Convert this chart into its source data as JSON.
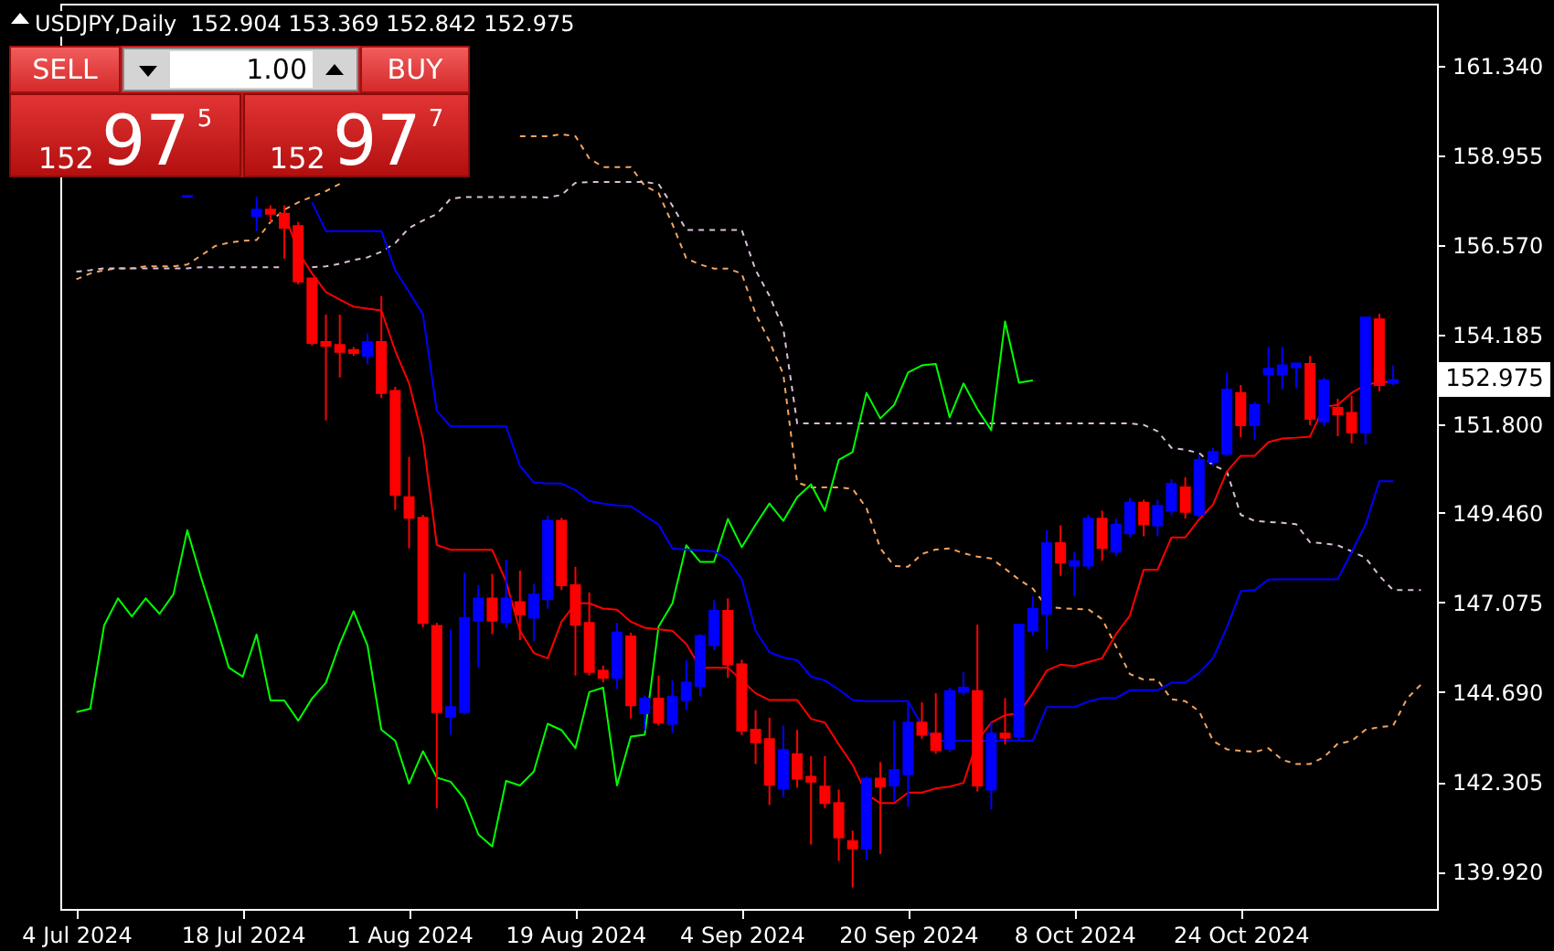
{
  "chart_data": {
    "type": "candlestick",
    "title": "USDJPY,Daily  152.904 153.369 152.842 152.975",
    "categories": [
      "4 Jul 2024",
      null,
      null,
      null,
      null,
      null,
      null,
      null,
      null,
      null,
      null,
      null,
      "18 Jul 2024",
      null,
      null,
      null,
      null,
      null,
      null,
      null,
      null,
      null,
      null,
      null,
      "1 Aug 2024",
      null,
      null,
      null,
      null,
      null,
      null,
      null,
      null,
      null,
      null,
      null,
      "19 Aug 2024",
      null,
      null,
      null,
      null,
      null,
      null,
      null,
      null,
      null,
      null,
      null,
      "4 Sep 2024",
      null,
      null,
      null,
      null,
      null,
      null,
      null,
      null,
      null,
      null,
      null,
      "20 Sep 2024",
      null,
      null,
      null,
      null,
      null,
      null,
      null,
      null,
      null,
      null,
      null,
      "8 Oct 2024",
      null,
      null,
      null,
      null,
      null,
      null,
      null,
      null,
      null,
      null,
      null,
      "24 Oct 2024",
      null,
      null,
      null,
      null,
      null,
      null,
      null,
      null,
      null,
      null,
      null,
      null,
      null
    ],
    "ohlc": [
      null,
      null,
      null,
      null,
      null,
      null,
      null,
      null,
      [
        157.85,
        157.9,
        157.82,
        157.87
      ],
      null,
      null,
      null,
      null,
      [
        157.33,
        157.85,
        156.94,
        157.51
      ],
      [
        157.51,
        157.62,
        157.18,
        157.4
      ],
      [
        157.4,
        157.62,
        156.21,
        157.02
      ],
      [
        157.07,
        157.18,
        155.52,
        155.6
      ],
      [
        155.68,
        155.68,
        153.9,
        153.97
      ],
      [
        153.99,
        154.72,
        151.91,
        153.89
      ],
      [
        153.91,
        154.72,
        153.05,
        153.73
      ],
      [
        153.78,
        153.86,
        153.62,
        153.7
      ],
      [
        153.62,
        154.22,
        153.4,
        153.99
      ],
      [
        153.99,
        155.21,
        152.5,
        152.64
      ],
      [
        152.69,
        152.8,
        149.53,
        149.93
      ],
      [
        149.87,
        150.94,
        148.51,
        149.32
      ],
      [
        149.32,
        149.4,
        146.41,
        146.53
      ],
      [
        146.45,
        146.53,
        141.61,
        144.16
      ],
      [
        144.04,
        146.35,
        143.56,
        144.29
      ],
      [
        144.16,
        147.86,
        144.1,
        146.66
      ],
      [
        146.59,
        147.53,
        145.34,
        147.18
      ],
      [
        147.18,
        147.83,
        146.23,
        146.59
      ],
      [
        146.56,
        148.21,
        146.4,
        147.18
      ],
      [
        147.08,
        147.92,
        146.07,
        146.75
      ],
      [
        146.67,
        147.57,
        146.04,
        147.28
      ],
      [
        147.16,
        149.38,
        146.9,
        149.24
      ],
      [
        149.24,
        149.32,
        147.4,
        147.53
      ],
      [
        147.53,
        148.02,
        145.13,
        146.48
      ],
      [
        146.53,
        147.34,
        145.13,
        145.23
      ],
      [
        145.26,
        145.4,
        144.95,
        145.07
      ],
      [
        145.07,
        146.53,
        144.77,
        146.27
      ],
      [
        146.17,
        146.27,
        143.99,
        144.34
      ],
      [
        144.13,
        144.6,
        143.67,
        144.52
      ],
      [
        144.52,
        145.13,
        143.8,
        143.88
      ],
      [
        143.85,
        145.0,
        143.61,
        144.56
      ],
      [
        144.48,
        145.54,
        144.21,
        144.94
      ],
      [
        144.86,
        146.23,
        144.58,
        146.18
      ],
      [
        145.94,
        147.13,
        145.8,
        146.85
      ],
      [
        146.85,
        147.18,
        145.07,
        145.43
      ],
      [
        145.43,
        145.55,
        143.55,
        143.67
      ],
      [
        143.69,
        144.21,
        142.78,
        143.36
      ],
      [
        143.44,
        144.01,
        141.69,
        142.23
      ],
      [
        142.13,
        143.8,
        141.9,
        143.15
      ],
      [
        143.04,
        143.69,
        142.15,
        142.39
      ],
      [
        142.44,
        142.99,
        140.64,
        142.31
      ],
      [
        142.18,
        142.99,
        141.61,
        141.74
      ],
      [
        141.74,
        142.1,
        140.2,
        140.83
      ],
      [
        140.73,
        141.01,
        139.5,
        140.54
      ],
      [
        140.54,
        142.45,
        140.23,
        142.39
      ],
      [
        142.39,
        142.83,
        140.39,
        142.18
      ],
      [
        142.21,
        143.93,
        141.78,
        142.62
      ],
      [
        142.51,
        144.4,
        141.64,
        143.88
      ],
      [
        143.88,
        144.42,
        143.45,
        143.56
      ],
      [
        143.59,
        144.66,
        143.05,
        143.15
      ],
      [
        143.19,
        144.81,
        143.1,
        144.72
      ],
      [
        144.7,
        145.23,
        144.6,
        144.81
      ],
      [
        144.72,
        146.48,
        142.05,
        142.21
      ],
      [
        142.1,
        143.88,
        141.58,
        143.59
      ],
      [
        143.59,
        144.53,
        143.3,
        143.48
      ],
      [
        143.51,
        146.5,
        143.4,
        146.48
      ],
      [
        146.32,
        147.24,
        146.2,
        146.9
      ],
      [
        146.77,
        148.99,
        145.83,
        148.65
      ],
      [
        148.65,
        149.12,
        147.78,
        148.13
      ],
      [
        148.05,
        148.42,
        147.24,
        148.17
      ],
      [
        148.05,
        149.4,
        147.95,
        149.3
      ],
      [
        149.3,
        149.51,
        148.18,
        148.52
      ],
      [
        148.42,
        149.3,
        148.3,
        149.14
      ],
      [
        148.91,
        149.85,
        148.8,
        149.72
      ],
      [
        149.72,
        149.8,
        148.83,
        149.15
      ],
      [
        149.12,
        149.8,
        148.83,
        149.64
      ],
      [
        149.51,
        150.35,
        149.4,
        150.22
      ],
      [
        150.13,
        150.4,
        149.3,
        149.48
      ],
      [
        149.4,
        151.0,
        149.3,
        150.86
      ],
      [
        150.81,
        151.18,
        150.7,
        151.07
      ],
      [
        151.02,
        153.18,
        150.95,
        152.73
      ],
      [
        152.64,
        152.85,
        151.46,
        151.78
      ],
      [
        151.78,
        152.4,
        151.39,
        152.32
      ],
      [
        153.13,
        153.86,
        152.37,
        153.28
      ],
      [
        153.13,
        153.86,
        152.73,
        153.37
      ],
      [
        153.32,
        153.42,
        152.76,
        153.42
      ],
      [
        153.41,
        153.62,
        151.78,
        151.95
      ],
      [
        151.88,
        153.05,
        151.75,
        152.97
      ],
      [
        152.24,
        152.48,
        151.49,
        152.07
      ],
      [
        152.11,
        152.56,
        151.3,
        151.59
      ],
      [
        151.59,
        154.67,
        151.27,
        154.64
      ],
      [
        154.59,
        154.74,
        152.68,
        152.85
      ],
      [
        152.904,
        153.369,
        152.842,
        152.975
      ],
      null,
      null
    ],
    "colors": [
      null,
      null,
      null,
      null,
      null,
      null,
      null,
      null,
      "#0000ff",
      null,
      null,
      null,
      null,
      "#0000ff",
      "#ff0000",
      "#ff0000",
      "#ff0000",
      "#ff0000",
      "#ff0000",
      "#ff0000",
      "#ff0000",
      "#0000ff",
      "#ff0000",
      "#ff0000",
      "#ff0000",
      "#ff0000",
      "#ff0000",
      "#0000ff",
      "#0000ff",
      "#0000ff",
      "#ff0000",
      "#0000ff",
      "#ff0000",
      "#0000ff",
      "#0000ff",
      "#ff0000",
      "#ff0000",
      "#ff0000",
      "#ff0000",
      "#0000ff",
      "#ff0000",
      "#0000ff",
      "#ff0000",
      "#0000ff",
      "#0000ff",
      "#0000ff",
      "#0000ff",
      "#ff0000",
      "#ff0000",
      "#ff0000",
      "#ff0000",
      "#0000ff",
      "#ff0000",
      "#ff0000",
      "#ff0000",
      "#ff0000",
      "#ff0000",
      "#0000ff",
      "#ff0000",
      "#0000ff",
      "#0000ff",
      "#ff0000",
      "#ff0000",
      "#0000ff",
      "#0000ff",
      "#ff0000",
      "#0000ff",
      "#ff0000",
      "#0000ff",
      "#0000ff",
      "#0000ff",
      "#ff0000",
      "#0000ff",
      "#0000ff",
      "#ff0000",
      "#0000ff",
      "#0000ff",
      "#ff0000",
      "#0000ff",
      "#0000ff",
      "#ff0000",
      "#0000ff",
      "#0000ff",
      "#0000ff",
      "#ff0000",
      "#0000ff",
      "#0000ff",
      "#0000ff",
      "#0000ff",
      "#ff0000",
      "#0000ff",
      "#ff0000",
      "#ff0000",
      "#0000ff",
      "#ff0000",
      "#0000ff",
      null,
      null
    ],
    "series": [
      {
        "type": "line",
        "line_style": "dashed",
        "color": "#f4a460",
        "values": [
          155.66,
          155.81,
          155.9,
          155.95,
          155.95,
          156.0,
          156.0,
          156.0,
          156.05,
          156.29,
          156.54,
          156.63,
          156.68,
          156.7,
          157.18,
          157.51,
          157.7,
          157.85,
          158.0,
          158.19,
          null,
          null,
          null,
          null,
          null,
          null,
          null,
          null,
          null,
          null,
          null,
          null,
          159.46,
          159.46,
          159.46,
          159.51,
          159.46,
          158.87,
          158.64,
          158.64,
          158.64,
          158.14,
          157.95,
          157.12,
          156.21,
          156.05,
          155.94,
          155.94,
          155.81,
          154.74,
          154.01,
          153.13,
          150.26,
          150.13,
          150.13,
          150.13,
          150.09,
          149.58,
          148.51,
          148.04,
          148.02,
          148.36,
          148.48,
          148.51,
          148.38,
          148.29,
          148.24,
          147.97,
          147.68,
          147.44,
          146.96,
          146.92,
          146.9,
          146.89,
          146.63,
          145.91,
          145.17,
          145.02,
          145.02,
          144.5,
          144.45,
          144.18,
          143.4,
          143.17,
          143.13,
          143.1,
          143.2,
          142.89,
          142.78,
          142.78,
          142.96,
          143.32,
          143.39,
          143.69,
          143.76,
          143.8,
          144.52,
          144.89
        ]
      },
      {
        "type": "line",
        "line_style": "dashed",
        "color": "#d8bfd8",
        "values": [
          155.86,
          155.9,
          155.95,
          155.95,
          155.95,
          155.95,
          155.95,
          155.95,
          155.95,
          155.98,
          155.98,
          155.98,
          155.98,
          155.98,
          155.98,
          155.98,
          null,
          155.98,
          156.0,
          156.07,
          156.17,
          156.24,
          156.39,
          156.62,
          157.02,
          157.22,
          157.39,
          157.8,
          157.84,
          157.84,
          157.84,
          157.84,
          157.84,
          157.84,
          157.83,
          157.9,
          158.22,
          158.24,
          158.24,
          158.24,
          158.24,
          158.24,
          158.19,
          157.61,
          156.97,
          156.97,
          156.97,
          156.97,
          156.97,
          155.9,
          155.22,
          154.35,
          151.83,
          151.83,
          151.83,
          151.83,
          151.83,
          151.83,
          151.83,
          151.83,
          151.83,
          151.83,
          151.83,
          151.83,
          151.83,
          151.83,
          151.83,
          151.83,
          151.83,
          151.83,
          151.83,
          151.83,
          151.83,
          151.83,
          151.83,
          151.83,
          151.83,
          151.79,
          151.62,
          151.18,
          151.13,
          151.04,
          150.72,
          150.55,
          149.4,
          149.24,
          149.21,
          149.19,
          149.15,
          148.67,
          148.64,
          148.59,
          148.43,
          148.26,
          147.78,
          147.4,
          147.4,
          147.4
        ]
      },
      {
        "type": "line",
        "color": "#00ff00",
        "values": [
          144.16,
          144.25,
          146.46,
          147.18,
          146.7,
          147.18,
          146.77,
          147.29,
          148.99,
          147.73,
          146.56,
          145.34,
          145.1,
          146.22,
          144.47,
          144.47,
          143.93,
          144.52,
          144.94,
          145.97,
          146.84,
          145.93,
          143.69,
          143.4,
          142.26,
          143.12,
          142.42,
          142.31,
          141.85,
          140.91,
          140.59,
          142.33,
          142.21,
          142.58,
          143.85,
          143.68,
          143.2,
          144.69,
          144.81,
          142.21,
          143.51,
          143.56,
          146.43,
          147.05,
          148.59,
          148.15,
          148.15,
          149.29,
          148.54,
          149.14,
          149.7,
          149.24,
          149.87,
          150.21,
          149.51,
          150.86,
          151.07,
          152.64,
          151.96,
          152.32,
          153.18,
          153.37,
          153.41,
          151.99,
          152.89,
          152.21,
          151.65,
          154.54,
          152.91,
          152.97,
          null,
          null,
          null,
          null,
          null,
          null,
          null,
          null,
          null,
          null,
          null,
          null,
          null,
          null,
          null,
          null,
          null,
          null,
          null,
          null,
          null,
          null,
          null,
          null,
          null,
          null,
          null,
          null
        ]
      },
      {
        "type": "line",
        "color": "#0000ff",
        "values": [
          null,
          null,
          null,
          null,
          null,
          null,
          null,
          null,
          null,
          null,
          null,
          null,
          null,
          null,
          null,
          null,
          null,
          157.7,
          156.94,
          156.94,
          156.94,
          156.94,
          156.94,
          155.9,
          155.32,
          154.73,
          152.16,
          151.75,
          151.75,
          151.75,
          151.75,
          151.75,
          150.7,
          150.26,
          150.23,
          150.23,
          150.06,
          149.77,
          149.7,
          149.65,
          149.63,
          149.38,
          149.14,
          148.51,
          148.48,
          148.46,
          148.43,
          148.21,
          147.69,
          146.32,
          145.75,
          145.61,
          145.54,
          145.1,
          145.0,
          144.76,
          144.48,
          144.45,
          144.45,
          144.45,
          144.45,
          143.8,
          143.4,
          143.4,
          143.4,
          143.4,
          143.4,
          143.4,
          143.4,
          143.4,
          144.29,
          144.29,
          144.29,
          144.44,
          144.53,
          144.53,
          144.74,
          144.74,
          144.74,
          144.94,
          144.94,
          145.2,
          145.59,
          146.41,
          147.37,
          147.4,
          147.68,
          147.69,
          147.69,
          147.69,
          147.69,
          147.69,
          148.41,
          149.14,
          150.29,
          150.29,
          null,
          null
        ]
      },
      {
        "type": "line",
        "color": "#ff0000",
        "values": [
          null,
          null,
          null,
          null,
          null,
          null,
          null,
          null,
          null,
          null,
          null,
          null,
          null,
          null,
          null,
          157.41,
          156.39,
          155.81,
          155.32,
          155.12,
          154.93,
          154.88,
          154.83,
          153.76,
          152.89,
          151.43,
          148.6,
          148.47,
          148.47,
          148.47,
          148.47,
          147.63,
          146.32,
          145.73,
          145.59,
          146.56,
          147.05,
          147.05,
          146.91,
          146.88,
          146.56,
          146.4,
          146.36,
          146.32,
          145.97,
          145.34,
          145.34,
          145.34,
          145.0,
          144.66,
          144.48,
          144.48,
          144.48,
          143.98,
          143.88,
          143.3,
          142.76,
          141.98,
          141.74,
          141.74,
          142.02,
          142.02,
          142.13,
          142.18,
          142.28,
          143.4,
          143.88,
          144.08,
          144.13,
          144.66,
          145.26,
          145.42,
          145.38,
          145.49,
          145.59,
          146.23,
          146.72,
          147.94,
          147.94,
          148.8,
          148.8,
          149.28,
          149.67,
          150.55,
          150.97,
          150.97,
          151.33,
          151.43,
          151.45,
          151.48,
          152.27,
          152.32,
          152.64,
          152.85,
          152.93,
          152.93,
          null,
          null
        ]
      }
    ],
    "ylim": [
      138.93,
      162.98
    ],
    "yticks": [
      {
        "value": 139.92,
        "label": "139.920"
      },
      {
        "value": 142.305,
        "label": "142.305"
      },
      {
        "value": 144.69,
        "label": "144.690"
      },
      {
        "value": 147.075,
        "label": "147.075"
      },
      {
        "value": 149.46,
        "label": "149.460"
      },
      {
        "value": 151.8,
        "label": "151.800"
      },
      {
        "value": 154.185,
        "label": "154.185"
      },
      {
        "value": 156.57,
        "label": "156.570"
      },
      {
        "value": 158.955,
        "label": "158.955"
      },
      {
        "value": 161.34,
        "label": "161.340"
      }
    ],
    "annotations": [
      "SELL",
      "1.00",
      "BUY",
      "152",
      "97",
      "5",
      "152",
      "97",
      "7",
      "152.975"
    ]
  }
}
